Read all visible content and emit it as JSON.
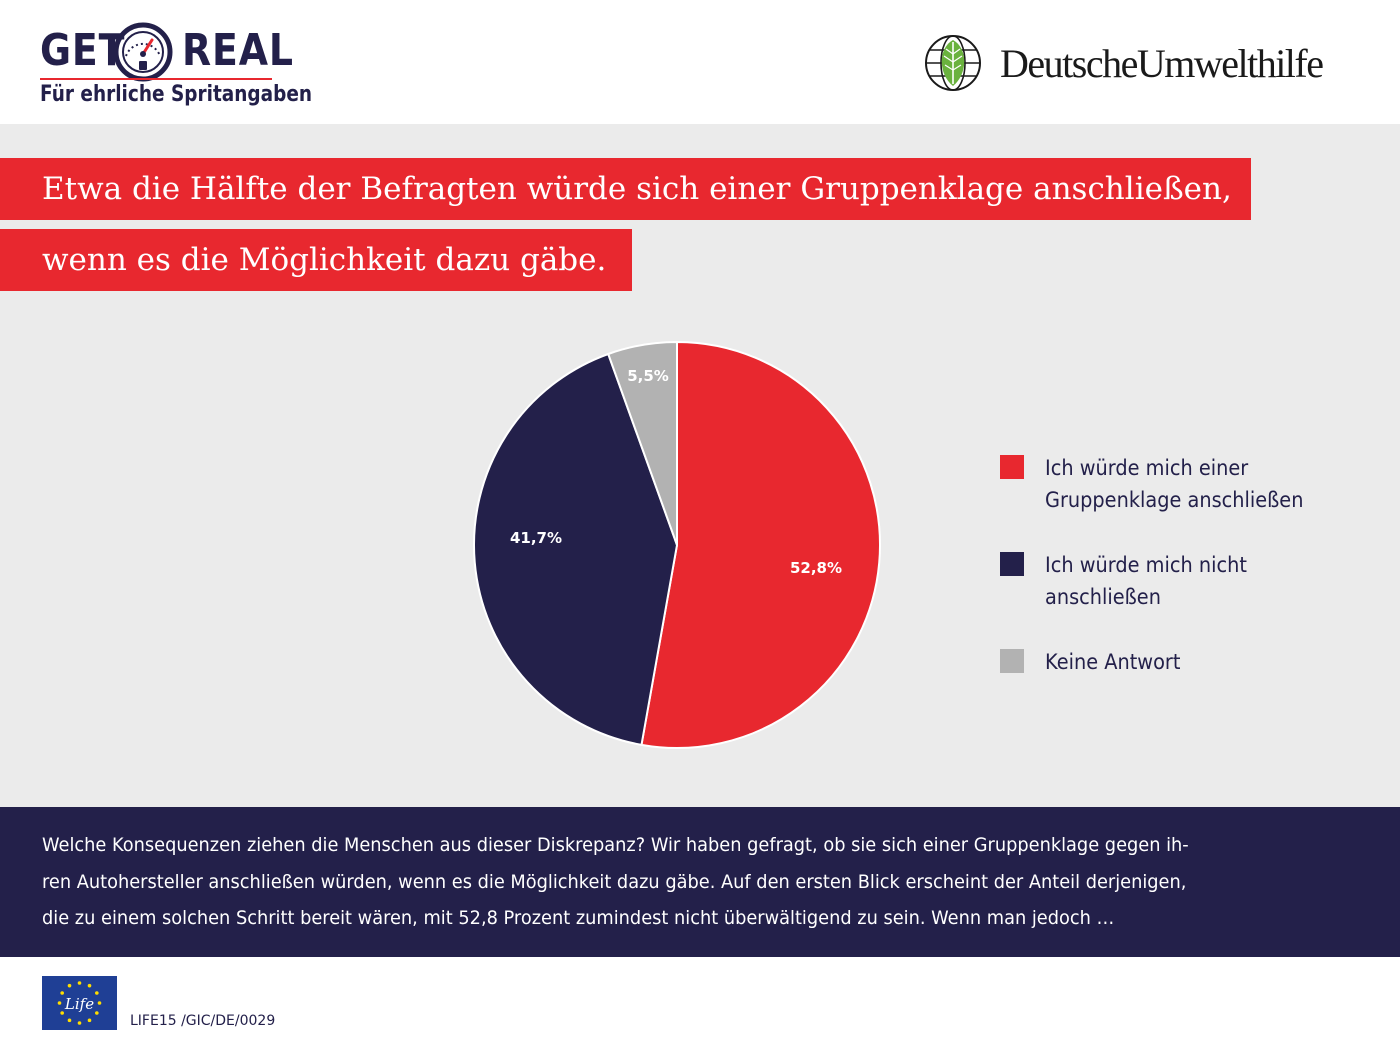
{
  "header": {
    "logo_left": {
      "word1": "GET",
      "word2": "REAL",
      "tagline": "Für ehrliche Spritangaben"
    },
    "logo_right": {
      "name": "DeutscheUmwelthilfe",
      "icon": "leaf-globe-icon"
    }
  },
  "title": {
    "line1": "Etwa die Hälfte der Befragten würde sich einer Gruppenklage anschließen,",
    "line2": "wenn es die Möglichkeit dazu gäbe."
  },
  "chart_data": {
    "type": "pie",
    "title": "",
    "slices": [
      {
        "label": "Ich würde mich einer Gruppenklage anschließen",
        "value": 52.8,
        "display": "52,8%",
        "color": "#e8282f"
      },
      {
        "label": "Ich würde mich nicht anschließen",
        "value": 41.7,
        "display": "41,7%",
        "color": "#23204a"
      },
      {
        "label": "Keine Antwort",
        "value": 5.5,
        "display": "5,5%",
        "color": "#b2b2b2"
      }
    ],
    "start": "12 o'clock",
    "direction": "clockwise",
    "legend_position": "right"
  },
  "legend": {
    "items": [
      {
        "line1": "Ich würde mich einer",
        "line2": "Gruppenklage anschließen"
      },
      {
        "line1": "Ich würde mich nicht",
        "line2": "anschließen"
      },
      {
        "line1": "Keine Antwort",
        "line2": ""
      }
    ]
  },
  "description": {
    "lines": [
      "Welche Konsequenzen ziehen die Menschen aus dieser Diskrepanz? Wir haben gefragt, ob sie sich einer Gruppenklage gegen ih-",
      "ren Autohersteller anschließen würden, wenn es die Möglichkeit dazu gäbe. Auf den ersten Blick erscheint der Anteil derjenigen,",
      "die zu einem solchen Schritt bereit wären, mit 52,8 Prozent zumindest nicht überwältigend zu sein. Wenn man jedoch …"
    ]
  },
  "footer": {
    "eu_logo_text": "Life",
    "code": "LIFE15 /GIC/DE/0029"
  },
  "colors": {
    "red": "#e8282f",
    "navy": "#23204a",
    "grey": "#b2b2b2",
    "panel": "#ebebeb"
  }
}
